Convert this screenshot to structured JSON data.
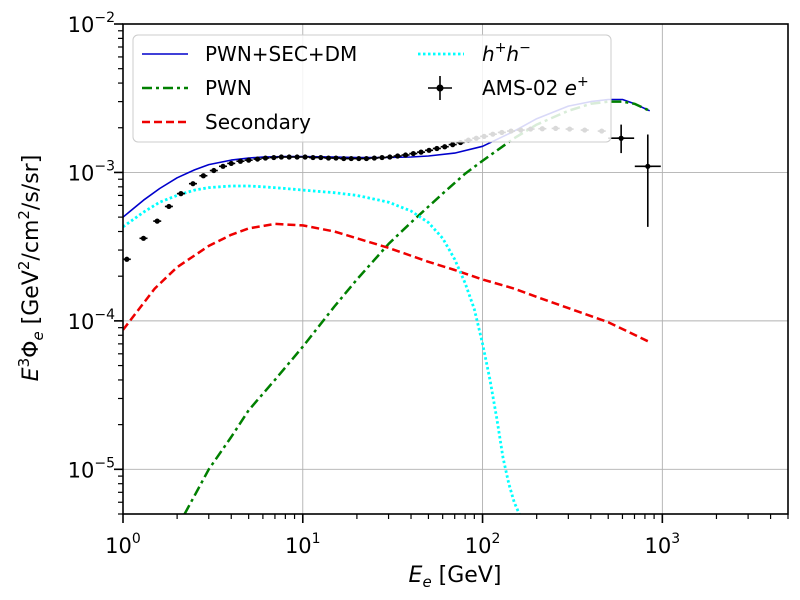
{
  "chart_data": {
    "type": "line",
    "xscale": "log",
    "yscale": "log",
    "xlim": [
      1,
      5000
    ],
    "ylim": [
      5e-06,
      0.01
    ],
    "grid": true,
    "legend_position": "upper-left",
    "legend_columns": 2,
    "xlabel": {
      "base": "E",
      "sub": "e",
      "rest": " [GeV]"
    },
    "ylabel": {
      "pre": "E",
      "sup": "3",
      "phi": "Φ",
      "sub": "e",
      "rest1": " [GeV",
      "sup2": "2",
      "rest2": "/cm",
      "sup3": "2",
      "rest3": "/s/sr]"
    },
    "x_ticks": [
      {
        "value": 1,
        "base": "10",
        "exp": "0"
      },
      {
        "value": 10,
        "base": "10",
        "exp": "1"
      },
      {
        "value": 100,
        "base": "10",
        "exp": "2"
      },
      {
        "value": 1000,
        "base": "10",
        "exp": "3"
      }
    ],
    "y_ticks": [
      {
        "value": 1e-05,
        "base": "10",
        "exp": "−5"
      },
      {
        "value": 0.0001,
        "base": "10",
        "exp": "−4"
      },
      {
        "value": 0.001,
        "base": "10",
        "exp": "−3"
      },
      {
        "value": 0.01,
        "base": "10",
        "exp": "−2"
      }
    ],
    "series": [
      {
        "name": "PWN+SEC+DM",
        "style": "solid",
        "color": "#0000cc",
        "x": [
          1,
          1.3,
          1.6,
          2,
          2.5,
          3,
          4,
          5,
          6,
          8,
          10,
          15,
          20,
          30,
          40,
          50,
          70,
          100,
          150,
          200,
          300,
          400,
          500,
          600,
          700,
          850
        ],
        "y": [
          0.0005,
          0.00065,
          0.00078,
          0.00092,
          0.00104,
          0.00113,
          0.00121,
          0.00125,
          0.00127,
          0.00128,
          0.00128,
          0.00127,
          0.00126,
          0.00126,
          0.00127,
          0.00129,
          0.00135,
          0.0015,
          0.0019,
          0.0023,
          0.0028,
          0.003,
          0.0031,
          0.0031,
          0.0029,
          0.0026
        ]
      },
      {
        "name": "PWN",
        "style": "dashdot",
        "color": "#008000",
        "x": [
          2.2,
          3,
          4,
          5,
          7,
          10,
          15,
          20,
          30,
          40,
          60,
          80,
          100,
          150,
          200,
          300,
          400,
          500,
          600,
          700,
          850
        ],
        "y": [
          5e-06,
          1e-05,
          1.65e-05,
          2.5e-05,
          4e-05,
          6.7e-05,
          0.000125,
          0.00019,
          0.00033,
          0.00046,
          0.00072,
          0.00098,
          0.0012,
          0.0017,
          0.0021,
          0.0026,
          0.0029,
          0.003,
          0.003,
          0.0029,
          0.0026
        ]
      },
      {
        "name": "Secondary",
        "style": "dashed",
        "color": "#ee0000",
        "x": [
          1,
          1.5,
          2,
          3,
          4,
          5,
          7,
          10,
          15,
          20,
          30,
          50,
          70,
          100,
          150,
          200,
          300,
          500,
          850
        ],
        "y": [
          8.7e-05,
          0.000165,
          0.00023,
          0.00032,
          0.00038,
          0.00042,
          0.00045,
          0.00044,
          0.0004,
          0.00036,
          0.00031,
          0.00025,
          0.00022,
          0.00019,
          0.000165,
          0.000145,
          0.000122,
          9.8e-05,
          7.2e-05
        ]
      },
      {
        "name": "h⁺h⁻",
        "style": "dotted",
        "color": "#00ffff",
        "x": [
          1,
          1.3,
          1.6,
          2,
          2.5,
          3,
          4,
          5,
          6,
          8,
          10,
          15,
          20,
          30,
          40,
          50,
          60,
          70,
          80,
          90,
          100,
          110,
          120,
          130,
          140,
          150,
          160
        ],
        "y": [
          0.00043,
          0.00054,
          0.00063,
          0.0007,
          0.00076,
          0.00079,
          0.00081,
          0.00081,
          0.0008,
          0.00078,
          0.00076,
          0.00073,
          0.0007,
          0.00063,
          0.00055,
          0.00046,
          0.00036,
          0.00026,
          0.00018,
          0.00012,
          7e-05,
          4e-05,
          2.2e-05,
          1.2e-05,
          8e-06,
          6e-06,
          5e-06
        ]
      }
    ],
    "data_series": {
      "name": "AMS-02 e⁺",
      "color": "#000000",
      "points": [
        [
          1.05,
          0.00026
        ],
        [
          1.3,
          0.00036
        ],
        [
          1.55,
          0.00047
        ],
        [
          1.8,
          0.00059
        ],
        [
          2.1,
          0.00072
        ],
        [
          2.45,
          0.00084
        ],
        [
          2.8,
          0.00095
        ],
        [
          3.2,
          0.00103
        ],
        [
          3.6,
          0.0011
        ],
        [
          4.0,
          0.00115
        ],
        [
          4.5,
          0.00119
        ],
        [
          5.0,
          0.00121
        ],
        [
          5.6,
          0.00123
        ],
        [
          6.2,
          0.00125
        ],
        [
          6.9,
          0.00126
        ],
        [
          7.6,
          0.00127
        ],
        [
          8.4,
          0.00127
        ],
        [
          9.3,
          0.00127
        ],
        [
          10.3,
          0.00127
        ],
        [
          11.4,
          0.00126
        ],
        [
          12.6,
          0.00126
        ],
        [
          13.9,
          0.00125
        ],
        [
          15.3,
          0.00125
        ],
        [
          16.9,
          0.00124
        ],
        [
          18.6,
          0.00124
        ],
        [
          20.5,
          0.00124
        ],
        [
          22.6,
          0.00124
        ],
        [
          25,
          0.00125
        ],
        [
          27.6,
          0.00126
        ],
        [
          30.5,
          0.00127
        ],
        [
          33.7,
          0.00129
        ],
        [
          37.3,
          0.00131
        ],
        [
          41.2,
          0.00134
        ],
        [
          45.5,
          0.00137
        ],
        [
          50.4,
          0.00141
        ],
        [
          55.7,
          0.00145
        ],
        [
          61.6,
          0.00149
        ],
        [
          68.2,
          0.00154
        ],
        [
          75.4,
          0.00159
        ],
        [
          83.4,
          0.00165
        ],
        [
          92.3,
          0.0017
        ],
        [
          102,
          0.00175
        ],
        [
          114,
          0.00181
        ],
        [
          128,
          0.00186
        ],
        [
          144,
          0.0019
        ],
        [
          163,
          0.00193
        ],
        [
          185,
          0.00196
        ],
        [
          215,
          0.00197
        ],
        [
          255,
          0.00198
        ],
        [
          305,
          0.00196
        ],
        [
          370,
          0.00193
        ],
        [
          460,
          0.0019
        ],
        [
          590,
          0.0017
        ],
        [
          830,
          0.0011
        ]
      ],
      "y_error_points": [
        {
          "x": 590,
          "y": 0.0017,
          "lo": 0.00135,
          "hi": 0.0021
        },
        {
          "x": 830,
          "y": 0.0011,
          "lo": 0.00043,
          "hi": 0.0018
        }
      ]
    },
    "legend": [
      {
        "label": "PWN+SEC+DM",
        "style": "solid",
        "color": "#0000cc"
      },
      {
        "label": "PWN",
        "style": "dashdot",
        "color": "#008000"
      },
      {
        "label": "Secondary",
        "style": "dashed",
        "color": "#ee0000"
      },
      {
        "label_base": "h",
        "label_sup1": "+",
        "label_mid": "h",
        "label_sup2": "−",
        "style": "dotted",
        "color": "#00ffff"
      },
      {
        "label_pre": "AMS-02 ",
        "label_e": "e",
        "label_sup": "+",
        "style": "errorbar",
        "color": "#000000"
      }
    ]
  }
}
